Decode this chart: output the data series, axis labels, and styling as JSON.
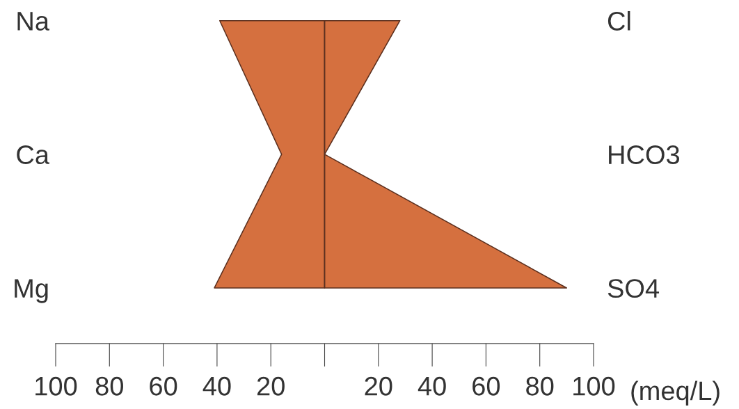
{
  "chart_data": {
    "type": "area",
    "orientation": "horizontal",
    "categories": [
      "Na",
      "Ca",
      "Mg"
    ],
    "y2_categories": [
      "Cl",
      "HCO3",
      "SO4"
    ],
    "series": [
      {
        "color": "#d5703f",
        "values": [
          -39,
          -16,
          -41
        ]
      },
      {
        "color": "#d5703f",
        "values": [
          28,
          0,
          90
        ]
      }
    ],
    "xlim": [
      -100,
      100
    ],
    "xticks": [
      {
        "value": -100,
        "label": "100"
      },
      {
        "value": -80,
        "label": "80"
      },
      {
        "value": -60,
        "label": "60"
      },
      {
        "value": -40,
        "label": "40"
      },
      {
        "value": -20,
        "label": "20"
      },
      {
        "value": 0,
        "label": null
      },
      20,
      40,
      60,
      80,
      100
    ],
    "xlabel": "(meq/L)",
    "ref_lines": [
      {
        "axis": "x",
        "value": 0,
        "color": "#5a3020"
      }
    ]
  }
}
